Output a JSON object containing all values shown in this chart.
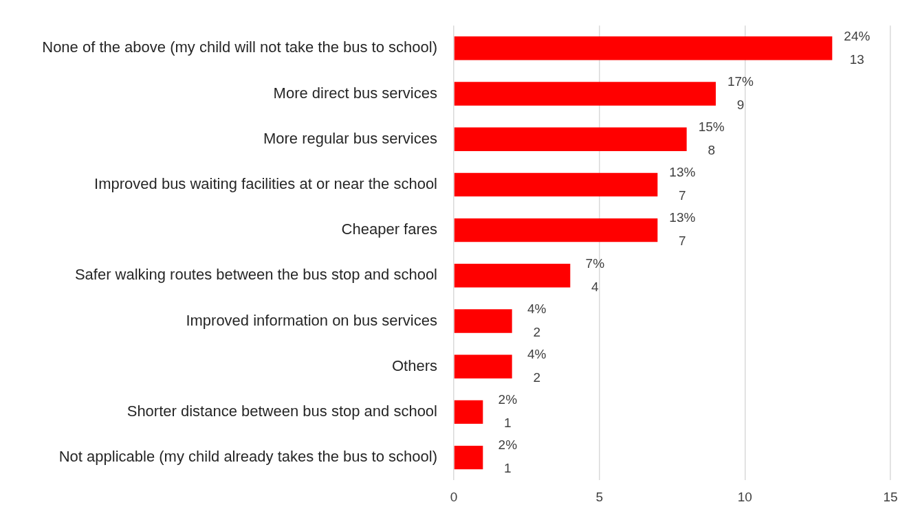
{
  "chart_data": {
    "type": "bar",
    "orientation": "horizontal",
    "categories": [
      "None of the above (my child will not take the bus to school)",
      "More direct bus services",
      "More regular bus services",
      "Improved bus waiting facilities at or near the school",
      "Cheaper fares",
      "Safer walking routes between the bus stop and school",
      "Improved information on bus services",
      "Others",
      "Shorter distance between bus stop and school",
      "Not applicable (my child already takes the bus to school)"
    ],
    "values": [
      13,
      9,
      8,
      7,
      7,
      4,
      2,
      2,
      1,
      1
    ],
    "value_labels": [
      "24%\n13",
      "17%\n9",
      "15%\n8",
      "13%\n7",
      "13%\n7",
      "7%\n4",
      "4%\n2",
      "4%\n2",
      "2%\n1",
      "2%\n1"
    ],
    "color": "#ff0000",
    "xlim": [
      0,
      15
    ],
    "xticks": [
      0,
      5,
      10,
      15
    ],
    "grid": "x",
    "legend": false
  }
}
